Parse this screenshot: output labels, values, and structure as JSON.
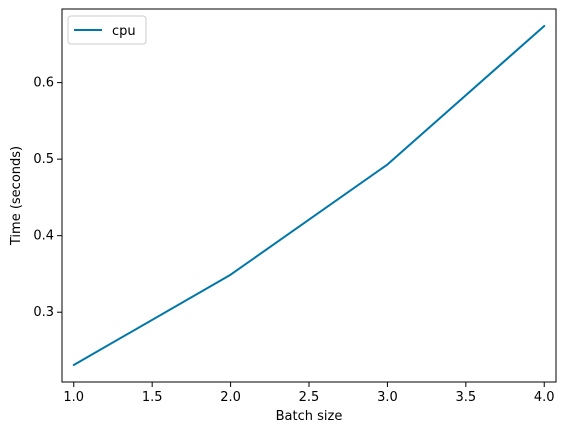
{
  "chart_data": {
    "type": "line",
    "title": "",
    "xlabel": "Batch size",
    "ylabel": "Time (seconds)",
    "x": [
      1.0,
      2.0,
      3.0,
      4.0
    ],
    "series": [
      {
        "name": "cpu",
        "values": [
          0.231,
          0.349,
          0.493,
          0.674
        ],
        "color": "#0077a8"
      }
    ],
    "xlim": [
      0.925,
      4.075
    ],
    "ylim": [
      0.2088,
      0.6962
    ],
    "xticks": [
      1.0,
      1.5,
      2.0,
      2.5,
      3.0,
      3.5,
      4.0
    ],
    "xtick_labels": [
      "1.0",
      "1.5",
      "2.0",
      "2.5",
      "3.0",
      "3.5",
      "4.0"
    ],
    "yticks": [
      0.3,
      0.4,
      0.5,
      0.6
    ],
    "ytick_labels": [
      "0.3",
      "0.4",
      "0.5",
      "0.6"
    ],
    "grid": false,
    "legend_position": "top-left"
  }
}
